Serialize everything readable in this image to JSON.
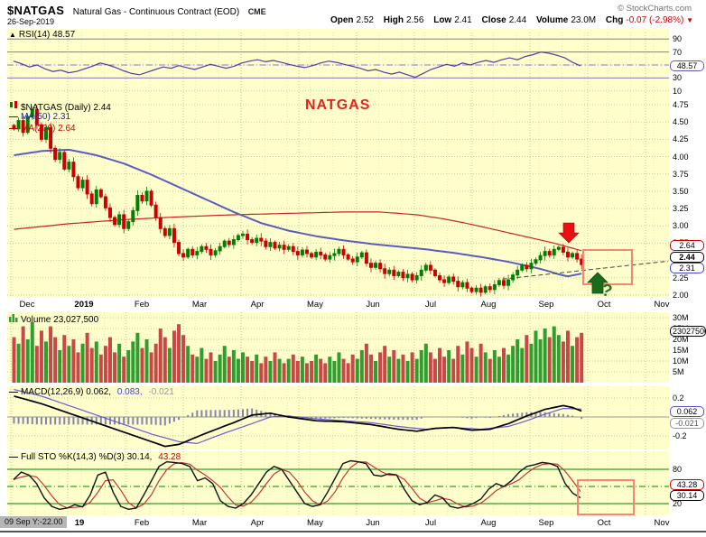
{
  "header": {
    "symbol": "$NATGAS",
    "name": "Natural Gas - Continuous Contract (EOD)",
    "exchange": "CME",
    "date": "26-Sep-2019",
    "credit": "© StockCharts.com",
    "quote": {
      "open_label": "Open",
      "open": "2.52",
      "high_label": "High",
      "high": "2.56",
      "low_label": "Low",
      "low": "2.41",
      "close_label": "Close",
      "close": "2.44",
      "volume_label": "Volume",
      "volume": "23.0M",
      "chg_label": "Chg",
      "chg": "-0.07 (-2.98%)",
      "chg_arrow": "▼"
    }
  },
  "legends": {
    "rsi": "RSI(14) 48.57",
    "price": "$NATGAS (Daily) 2.44",
    "ma50": "MA(50) 2.31",
    "ma200": "MA(200) 2.64",
    "volume": "Volume 23,027,500",
    "macd": "MACD(12,26,9) 0.062,",
    "macd2": "0.083,",
    "macd3": "-0.021",
    "sto": "Full STO %K(14,3) %D(3) 30.14,",
    "sto2": "43.28"
  },
  "axis_boxes": {
    "rsi": "48.57",
    "ma200": "2.64",
    "close": "2.44",
    "ma50": "2.31",
    "volume": "23027500",
    "macd": "0.062",
    "macd_hist": "-0.021",
    "sto_d": "43.28",
    "sto_k": "30.14"
  },
  "x_axis": {
    "top": [
      "Dec",
      "2019",
      "Feb",
      "Mar",
      "Apr",
      "May",
      "Jun",
      "Jul",
      "Aug",
      "Sep",
      "Oct",
      "Nov"
    ],
    "bottom": [
      "19",
      "Feb",
      "Mar",
      "Apr",
      "May",
      "Jun",
      "Jul",
      "Aug",
      "Sep",
      "Oct",
      "Nov"
    ],
    "crosshair_label": "09 Sep Y:-22.00"
  },
  "annotations": {
    "symbol_label": "NATGAS",
    "question": "?"
  },
  "colors": {
    "panel_bg": "#ffffcc",
    "grid": "#c9c9a0",
    "grid_minor": "#e7e7c2",
    "candle_up": "#008000",
    "candle_down": "#cc0000",
    "vol_up": "#2f9e2f",
    "vol_down": "#c84848",
    "ma50": "#5b5bc0",
    "ma200": "#cc2222",
    "rsi_line": "#4f3f9f",
    "rsi_band": "#8878c8",
    "macd_line": "#000000",
    "macd_signal": "#6a5ad0",
    "macd_hist": "#8585ad",
    "sto_k": "#111111",
    "sto_d": "#cc3333",
    "sto_band": "#008000",
    "annotation_box": "#f4876f",
    "arrow_down": "#e81010",
    "arrow_up": "#1a6b1a",
    "trendline": "#444444"
  },
  "chart_data": [
    {
      "panel": "rsi",
      "type": "line",
      "label": "RSI(14)",
      "last": 48.57,
      "ylim": [
        0,
        100
      ],
      "yticks": [
        90,
        70,
        30,
        10
      ],
      "overbought": 70,
      "oversold": 30,
      "midline": 50,
      "topline": 90,
      "values": [
        56,
        52,
        47,
        50,
        44,
        40,
        42,
        38,
        40,
        44,
        48,
        53,
        50,
        46,
        41,
        37,
        35,
        39,
        43,
        47,
        45,
        49,
        46,
        43,
        47,
        51,
        48,
        45,
        48,
        53,
        56,
        58,
        55,
        57,
        54,
        51,
        48,
        46,
        49,
        53,
        56,
        54,
        51,
        48,
        45,
        41,
        43,
        39,
        36,
        39,
        35,
        31,
        37,
        43,
        47,
        51,
        48,
        53,
        50,
        54,
        57,
        54,
        58,
        61,
        58,
        63,
        66,
        70,
        68,
        65,
        61,
        54,
        48.57
      ]
    },
    {
      "panel": "price",
      "type": "candlestick",
      "label": "$NATGAS (Daily)",
      "last_close": 2.44,
      "ylim": [
        2.0,
        4.75
      ],
      "yticks": [
        4.75,
        4.5,
        4.25,
        4.0,
        3.75,
        3.5,
        3.25,
        3.0,
        2.75,
        2.5,
        2.25,
        2.0
      ],
      "closes": [
        4.4,
        4.52,
        4.35,
        4.58,
        4.68,
        4.46,
        4.25,
        4.42,
        4.12,
        3.96,
        4.06,
        3.82,
        3.92,
        3.71,
        3.55,
        3.66,
        3.46,
        3.32,
        3.52,
        3.42,
        3.26,
        3.12,
        3.02,
        3.16,
        2.96,
        3.06,
        3.22,
        3.44,
        3.36,
        3.5,
        3.3,
        3.12,
        2.96,
        2.86,
        2.96,
        2.76,
        2.6,
        2.55,
        2.66,
        2.58,
        2.63,
        2.7,
        2.66,
        2.58,
        2.64,
        2.7,
        2.78,
        2.73,
        2.8,
        2.86,
        2.88,
        2.8,
        2.76,
        2.82,
        2.78,
        2.7,
        2.76,
        2.68,
        2.72,
        2.66,
        2.7,
        2.63,
        2.58,
        2.65,
        2.6,
        2.55,
        2.62,
        2.58,
        2.52,
        2.57,
        2.6,
        2.66,
        2.58,
        2.52,
        2.48,
        2.55,
        2.61,
        2.46,
        2.4,
        2.46,
        2.38,
        2.31,
        2.36,
        2.28,
        2.33,
        2.25,
        2.3,
        2.22,
        2.28,
        2.36,
        2.43,
        2.36,
        2.28,
        2.22,
        2.18,
        2.26,
        2.2,
        2.12,
        2.18,
        2.1,
        2.05,
        2.1,
        2.04,
        2.12,
        2.08,
        2.15,
        2.21,
        2.14,
        2.22,
        2.29,
        2.36,
        2.43,
        2.38,
        2.46,
        2.51,
        2.57,
        2.63,
        2.58,
        2.66,
        2.69,
        2.62,
        2.55,
        2.6,
        2.52,
        2.44
      ],
      "ma50": {
        "label": "MA(50)",
        "last": 2.31,
        "points": [
          [
            0,
            4.02
          ],
          [
            6,
            4.08
          ],
          [
            12,
            4.1
          ],
          [
            18,
            4.02
          ],
          [
            24,
            3.9
          ],
          [
            30,
            3.74
          ],
          [
            36,
            3.56
          ],
          [
            42,
            3.38
          ],
          [
            48,
            3.2
          ],
          [
            54,
            3.04
          ],
          [
            60,
            2.93
          ],
          [
            66,
            2.85
          ],
          [
            72,
            2.79
          ],
          [
            78,
            2.74
          ],
          [
            84,
            2.7
          ],
          [
            90,
            2.66
          ],
          [
            96,
            2.61
          ],
          [
            102,
            2.55
          ],
          [
            108,
            2.48
          ],
          [
            113,
            2.41
          ],
          [
            116,
            2.36
          ],
          [
            119,
            2.3
          ],
          [
            121,
            2.27
          ],
          [
            124,
            2.31
          ]
        ]
      },
      "ma200": {
        "label": "MA(200)",
        "last": 2.64,
        "points": [
          [
            0,
            2.95
          ],
          [
            12,
            3.03
          ],
          [
            24,
            3.09
          ],
          [
            36,
            3.13
          ],
          [
            48,
            3.16
          ],
          [
            60,
            3.18
          ],
          [
            72,
            3.2
          ],
          [
            80,
            3.2
          ],
          [
            88,
            3.16
          ],
          [
            94,
            3.1
          ],
          [
            100,
            3.02
          ],
          [
            106,
            2.93
          ],
          [
            112,
            2.84
          ],
          [
            118,
            2.75
          ],
          [
            124,
            2.64
          ]
        ]
      },
      "trendline": {
        "style": "dashed",
        "from_close_index": 107,
        "from_value": 2.23,
        "extends_to_value": 2.49
      }
    },
    {
      "panel": "volume",
      "type": "bar",
      "label": "Volume",
      "total_label": "23,027,500",
      "yticks_m": [
        30,
        25,
        20,
        15,
        10,
        5
      ],
      "values_m": [
        21,
        18,
        26,
        20,
        28,
        17,
        24,
        19,
        26,
        21,
        15,
        22,
        17,
        20,
        14,
        18,
        23,
        16,
        19,
        13,
        17,
        21,
        14,
        18,
        12,
        15,
        19,
        23,
        16,
        20,
        14,
        18,
        25,
        21,
        16,
        24,
        27,
        22,
        17,
        13,
        12,
        16,
        11,
        14,
        10,
        13,
        17,
        12,
        15,
        11,
        14,
        12,
        10,
        13,
        9,
        12,
        10,
        14,
        11,
        9,
        11,
        13,
        10,
        12,
        9,
        10,
        13,
        11,
        9,
        12,
        10,
        14,
        11,
        9,
        13,
        11,
        15,
        18,
        13,
        10,
        14,
        17,
        12,
        15,
        11,
        13,
        10,
        14,
        11,
        15,
        18,
        14,
        11,
        16,
        12,
        15,
        11,
        17,
        13,
        19,
        16,
        12,
        18,
        14,
        11,
        15,
        12,
        16,
        13,
        17,
        20,
        16,
        22,
        18,
        24,
        20,
        25,
        21,
        26,
        22,
        19,
        24,
        17,
        21,
        23
      ]
    },
    {
      "panel": "macd",
      "type": "line",
      "label": "MACD(12,26,9)",
      "last": {
        "macd": 0.062,
        "signal": 0.083,
        "hist": -0.021
      },
      "yticks": [
        0.2,
        -0.2
      ],
      "macd_points": [
        [
          0,
          0.22
        ],
        [
          6,
          0.14
        ],
        [
          12,
          0.04
        ],
        [
          18,
          -0.06
        ],
        [
          24,
          -0.16
        ],
        [
          30,
          -0.26
        ],
        [
          33,
          -0.31
        ],
        [
          36,
          -0.29
        ],
        [
          42,
          -0.17
        ],
        [
          48,
          -0.06
        ],
        [
          52,
          0.02
        ],
        [
          56,
          0.04
        ],
        [
          60,
          0.0
        ],
        [
          66,
          -0.04
        ],
        [
          72,
          -0.05
        ],
        [
          78,
          -0.08
        ],
        [
          84,
          -0.13
        ],
        [
          88,
          -0.15
        ],
        [
          92,
          -0.12
        ],
        [
          96,
          -0.11
        ],
        [
          100,
          -0.14
        ],
        [
          104,
          -0.13
        ],
        [
          108,
          -0.07
        ],
        [
          112,
          0.01
        ],
        [
          116,
          0.08
        ],
        [
          120,
          0.12
        ],
        [
          122,
          0.1
        ],
        [
          124,
          0.062
        ]
      ],
      "signal_points": [
        [
          0,
          0.29
        ],
        [
          6,
          0.22
        ],
        [
          12,
          0.12
        ],
        [
          18,
          0.02
        ],
        [
          24,
          -0.08
        ],
        [
          30,
          -0.18
        ],
        [
          36,
          -0.26
        ],
        [
          40,
          -0.28
        ],
        [
          46,
          -0.17
        ],
        [
          52,
          -0.07
        ],
        [
          56,
          0.0
        ],
        [
          60,
          0.01
        ],
        [
          66,
          -0.02
        ],
        [
          72,
          -0.04
        ],
        [
          78,
          -0.06
        ],
        [
          84,
          -0.1
        ],
        [
          90,
          -0.13
        ],
        [
          96,
          -0.11
        ],
        [
          102,
          -0.13
        ],
        [
          108,
          -0.1
        ],
        [
          112,
          -0.04
        ],
        [
          116,
          0.03
        ],
        [
          120,
          0.09
        ],
        [
          124,
          0.083
        ]
      ]
    },
    {
      "panel": "sto",
      "type": "line",
      "label": "Full STO %K(14,3) %D(3)",
      "last": {
        "k": 30.14,
        "d": 43.28
      },
      "yticks": [
        80,
        50,
        20
      ],
      "overbought": 80,
      "oversold": 20,
      "midline": 50,
      "k_values": [
        62,
        75,
        70,
        55,
        30,
        15,
        10,
        12,
        18,
        14,
        35,
        70,
        75,
        40,
        15,
        10,
        12,
        35,
        60,
        85,
        93,
        92,
        90,
        85,
        60,
        65,
        55,
        25,
        15,
        12,
        20,
        35,
        55,
        75,
        85,
        80,
        60,
        40,
        20,
        15,
        18,
        40,
        65,
        90,
        95,
        93,
        90,
        70,
        68,
        72,
        70,
        45,
        25,
        18,
        22,
        35,
        30,
        15,
        12,
        15,
        20,
        28,
        45,
        55,
        50,
        60,
        75,
        85,
        88,
        92,
        90,
        85,
        55,
        38,
        30.14
      ]
    }
  ]
}
